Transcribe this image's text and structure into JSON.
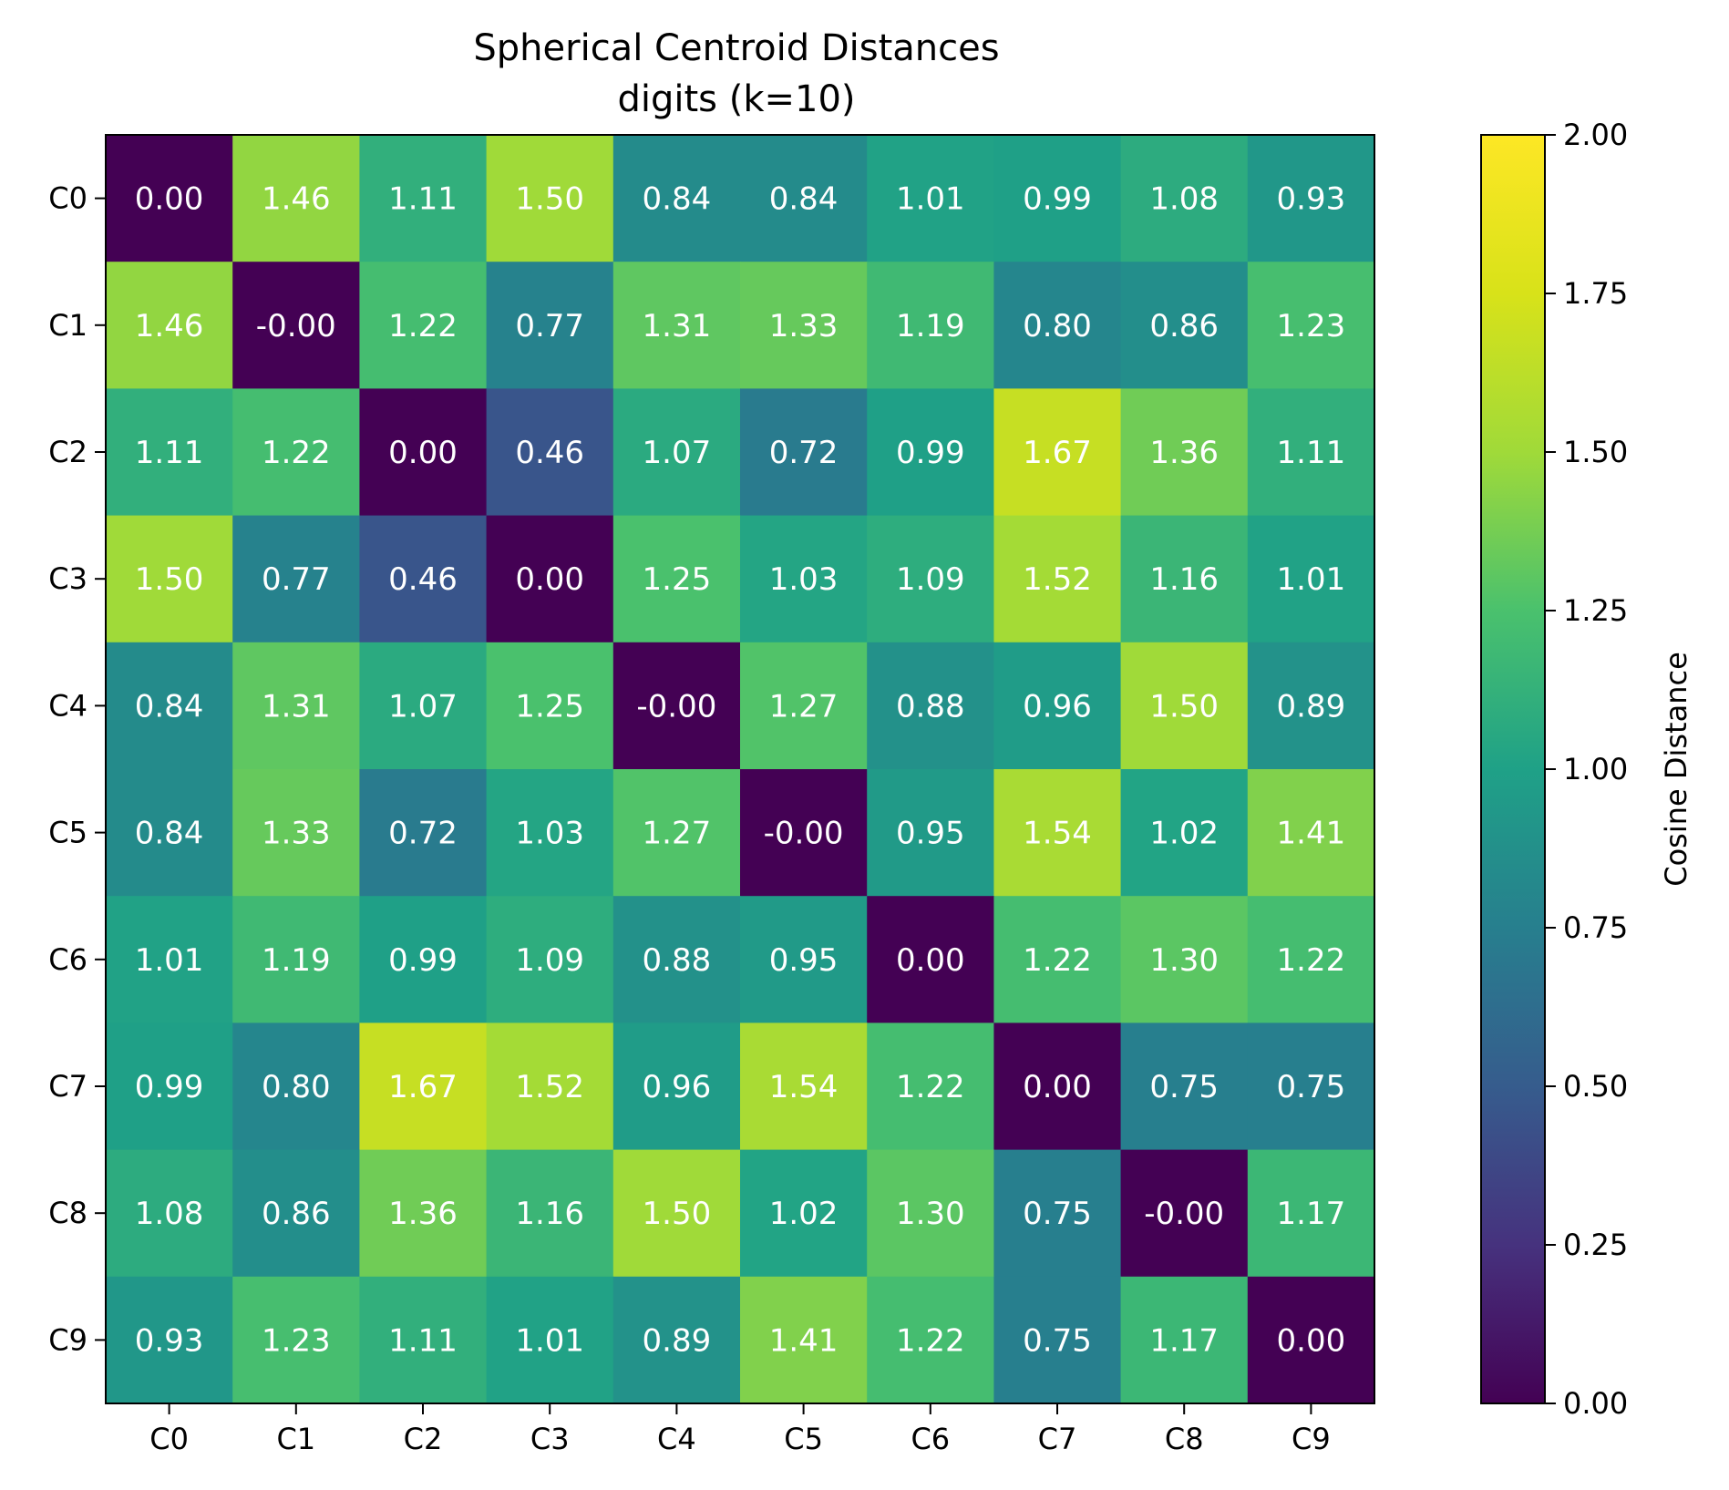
{
  "chart_data": {
    "type": "heatmap",
    "title": "Spherical Centroid Distances",
    "subtitle": "digits (k=10)",
    "rows": [
      "C0",
      "C1",
      "C2",
      "C3",
      "C4",
      "C5",
      "C6",
      "C7",
      "C8",
      "C9"
    ],
    "columns": [
      "C0",
      "C1",
      "C2",
      "C3",
      "C4",
      "C5",
      "C6",
      "C7",
      "C8",
      "C9"
    ],
    "values": [
      [
        "0.00",
        "1.46",
        "1.11",
        "1.50",
        "0.84",
        "0.84",
        "1.01",
        "0.99",
        "1.08",
        "0.93"
      ],
      [
        "1.46",
        "-0.00",
        "1.22",
        "0.77",
        "1.31",
        "1.33",
        "1.19",
        "0.80",
        "0.86",
        "1.23"
      ],
      [
        "1.11",
        "1.22",
        "0.00",
        "0.46",
        "1.07",
        "0.72",
        "0.99",
        "1.67",
        "1.36",
        "1.11"
      ],
      [
        "1.50",
        "0.77",
        "0.46",
        "0.00",
        "1.25",
        "1.03",
        "1.09",
        "1.52",
        "1.16",
        "1.01"
      ],
      [
        "0.84",
        "1.31",
        "1.07",
        "1.25",
        "-0.00",
        "1.27",
        "0.88",
        "0.96",
        "1.50",
        "0.89"
      ],
      [
        "0.84",
        "1.33",
        "0.72",
        "1.03",
        "1.27",
        "-0.00",
        "0.95",
        "1.54",
        "1.02",
        "1.41"
      ],
      [
        "1.01",
        "1.19",
        "0.99",
        "1.09",
        "0.88",
        "0.95",
        "0.00",
        "1.22",
        "1.30",
        "1.22"
      ],
      [
        "0.99",
        "0.80",
        "1.67",
        "1.52",
        "0.96",
        "1.54",
        "1.22",
        "0.00",
        "0.75",
        "0.75"
      ],
      [
        "1.08",
        "0.86",
        "1.36",
        "1.16",
        "1.50",
        "1.02",
        "1.30",
        "0.75",
        "-0.00",
        "1.17"
      ],
      [
        "0.93",
        "1.23",
        "1.11",
        "1.01",
        "0.89",
        "1.41",
        "1.22",
        "0.75",
        "1.17",
        "0.00"
      ]
    ],
    "colorbar": {
      "label": "Cosine Distance",
      "range": [
        0,
        2
      ],
      "ticks": [
        "0.00",
        "0.25",
        "0.50",
        "0.75",
        "1.00",
        "1.25",
        "1.50",
        "1.75",
        "2.00"
      ],
      "colormap": "viridis"
    }
  }
}
